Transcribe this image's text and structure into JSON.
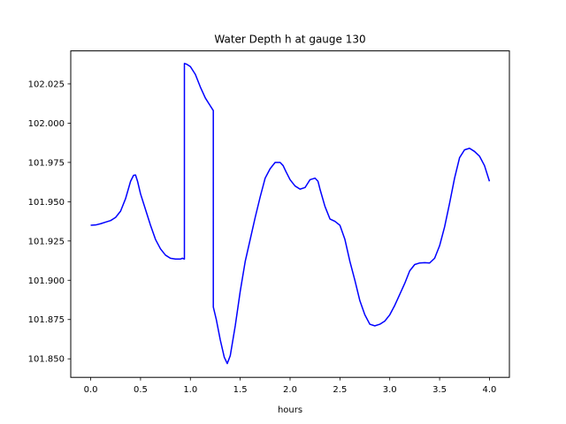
{
  "chart_data": {
    "type": "line",
    "title": "Water Depth h at gauge 130",
    "xlabel": "hours",
    "ylabel": "",
    "xlim": [
      -0.2,
      4.2
    ],
    "ylim": [
      101.8382,
      102.046
    ],
    "xticks": [
      0.0,
      0.5,
      1.0,
      1.5,
      2.0,
      2.5,
      3.0,
      3.5,
      4.0
    ],
    "xtick_labels": [
      "0.0",
      "0.5",
      "1.0",
      "1.5",
      "2.0",
      "2.5",
      "3.0",
      "3.5",
      "4.0"
    ],
    "yticks": [
      101.85,
      101.875,
      101.9,
      101.925,
      101.95,
      101.975,
      102.0,
      102.025
    ],
    "ytick_labels": [
      "101.850",
      "101.875",
      "101.900",
      "101.925",
      "101.950",
      "101.975",
      "102.000",
      "102.025"
    ],
    "grid": false,
    "series": [
      {
        "color": "#0000ff",
        "x": [
          0.0,
          0.05,
          0.1,
          0.15,
          0.2,
          0.25,
          0.3,
          0.35,
          0.4,
          0.43,
          0.45,
          0.47,
          0.5,
          0.55,
          0.6,
          0.65,
          0.7,
          0.75,
          0.8,
          0.85,
          0.9,
          0.92,
          0.94,
          0.94,
          0.96,
          1.0,
          1.05,
          1.1,
          1.15,
          1.2,
          1.23,
          1.23,
          1.26,
          1.3,
          1.34,
          1.37,
          1.4,
          1.45,
          1.5,
          1.55,
          1.6,
          1.65,
          1.7,
          1.75,
          1.8,
          1.85,
          1.9,
          1.93,
          1.96,
          2.0,
          2.05,
          2.1,
          2.15,
          2.18,
          2.2,
          2.25,
          2.28,
          2.3,
          2.35,
          2.4,
          2.45,
          2.5,
          2.55,
          2.6,
          2.65,
          2.7,
          2.75,
          2.8,
          2.85,
          2.9,
          2.95,
          3.0,
          3.05,
          3.1,
          3.15,
          3.2,
          3.25,
          3.3,
          3.35,
          3.4,
          3.45,
          3.5,
          3.55,
          3.6,
          3.65,
          3.7,
          3.75,
          3.8,
          3.85,
          3.9,
          3.95,
          4.0
        ],
        "y": [
          101.935,
          101.9352,
          101.936,
          101.937,
          101.938,
          101.94,
          101.944,
          101.952,
          101.963,
          101.9668,
          101.967,
          101.963,
          101.955,
          101.945,
          101.935,
          101.926,
          101.92,
          101.916,
          101.914,
          101.9135,
          101.9135,
          101.914,
          101.9135,
          102.038,
          102.0376,
          102.036,
          102.031,
          102.023,
          102.016,
          102.011,
          102.008,
          101.883,
          101.875,
          101.862,
          101.851,
          101.847,
          101.852,
          101.871,
          101.893,
          101.912,
          101.926,
          101.94,
          101.953,
          101.965,
          101.971,
          101.975,
          101.975,
          101.973,
          101.969,
          101.964,
          101.96,
          101.958,
          101.959,
          101.962,
          101.964,
          101.965,
          101.963,
          101.958,
          101.947,
          101.939,
          101.9375,
          101.935,
          101.926,
          101.912,
          101.9,
          101.887,
          101.878,
          101.872,
          101.871,
          101.872,
          101.874,
          101.878,
          101.884,
          101.891,
          101.898,
          101.906,
          101.91,
          101.911,
          101.9112,
          101.911,
          101.914,
          101.922,
          101.934,
          101.949,
          101.965,
          101.978,
          101.983,
          101.984,
          101.982,
          101.979,
          101.973,
          101.963
        ]
      }
    ]
  }
}
